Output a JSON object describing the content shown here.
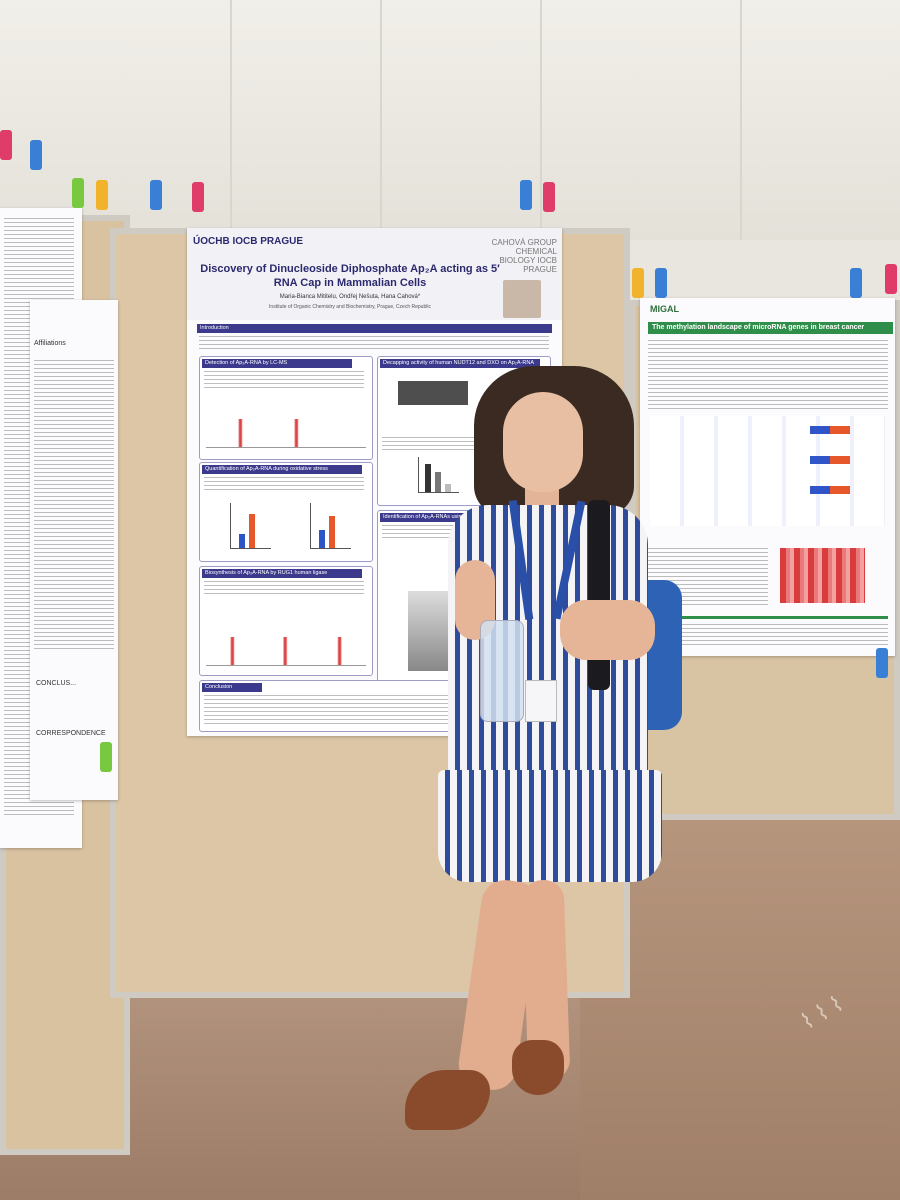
{
  "main_poster": {
    "logo": "ÚOCHB IOCB PRAGUE",
    "group_logo": "CAHOVÁ GROUP CHEMICAL BIOLOGY IOCB PRAGUE",
    "title": "Discovery of Dinucleoside Diphosphate Ap₂A acting as 5′ RNA Cap in Mammalian Cells",
    "authors": "Maria-Bianca Mititelu, Ondřej Nešuta, Hana Cahová*",
    "affiliation": "Institute of Organic Chemistry and Biochemistry, Prague, Czech Republic",
    "sections": {
      "intro": "Introduction",
      "detection": "Detection of Ap₂A-RNA by LC-MS",
      "quantification": "Quantification of Ap₂A-RNA during oxidative stress",
      "biosynthesis": "Biosynthesis of Ap₂A-RNA by RUG1 human ligase",
      "decapping": "Decapping activity of human NUDT12 and DXO on Ap₂A-RNA",
      "identification": "Identification of Ap₂A-RNAs using T4 RNA ...",
      "conclusion": "Conclusion"
    }
  },
  "side_poster": {
    "logo": "MIGAL",
    "title": "The methylation landscape of microRNA genes in breast cancer"
  },
  "left_poster": {
    "heading": "Affiliations",
    "conclusion_label": "CONCLUS...",
    "correspondence_label": "CORRESPONDENCE"
  },
  "colors": {
    "poster_accent": "#2c2a6e",
    "side_accent": "#2f8f4a",
    "dress_stripe": "#2f4c9c"
  }
}
